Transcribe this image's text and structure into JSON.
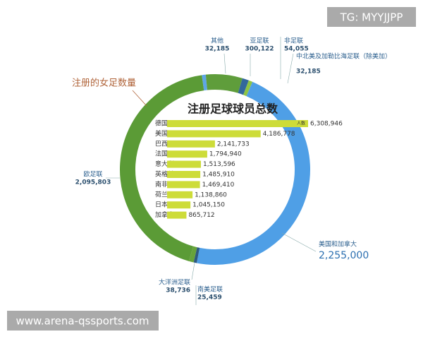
{
  "chart_data": [
    {
      "type": "pie",
      "annotation": "注册的女足数量",
      "categories": [
        "其他",
        "亚足联",
        "非足联",
        "中北美及加勒比海足联（除美加）",
        "美国和加拿大",
        "南美足联",
        "大洋洲足联",
        "欧足联"
      ],
      "values": [
        32185,
        300122,
        54055,
        32185,
        2255000,
        25459,
        38736,
        2095803
      ],
      "value_labels": [
        "32,185",
        "300,122",
        "54,055",
        "32,185",
        "2,255,000",
        "25,459",
        "38,736",
        "2,095,803"
      ],
      "colors": [
        "#5ea6e6",
        "#5f9d3b",
        "#33689c",
        "#8fc443",
        "#4f9fe6",
        "#2e5a80",
        "#67a33a",
        "#5b9b36"
      ]
    },
    {
      "type": "bar",
      "title": "注册足球球员总数",
      "annotation": "人数",
      "categories": [
        "德国",
        "美国",
        "巴西",
        "法国",
        "意大利",
        "英格兰",
        "南非",
        "荷兰",
        "日本",
        "加拿大"
      ],
      "values": [
        6308946,
        4186778,
        2141733,
        1794940,
        1513596,
        1485910,
        1469410,
        1138860,
        1045150,
        865712
      ],
      "value_labels": [
        "6,308,946",
        "4,186,778",
        "2,141,733",
        "1,794,940",
        "1,513,596",
        "1,485,910",
        "1,469,410",
        "1,138,860",
        "1,045,150",
        "865,712"
      ],
      "color": "#cddc39"
    }
  ],
  "watermarks": [
    "TG: MYYJJPP",
    "www.arena-qssports.com"
  ]
}
